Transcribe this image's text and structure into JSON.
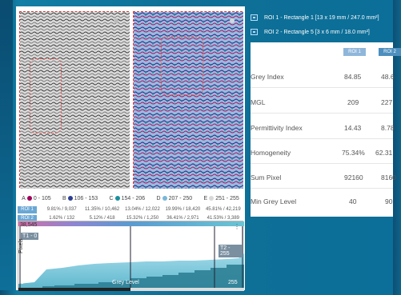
{
  "roi_legend": [
    {
      "label": "ROI 1 - Rectangle 1 [13 x 19 mm / 247.0 mm²]"
    },
    {
      "label": "ROI 2 - Rectangle 5 [3 x 6 mm / 18.0 mm²]"
    }
  ],
  "stats": {
    "head1": "ROI 1",
    "head2": "ROI 2",
    "rows": [
      {
        "label": "Grey Index",
        "v1": "84.85",
        "v2": "48.6"
      },
      {
        "label": "MGL",
        "v1": "209",
        "v2": "227"
      },
      {
        "label": "Permittivity Index",
        "v1": "14.43",
        "v2": "8.78"
      },
      {
        "label": "Homogeneity",
        "v1": "75.34%",
        "v2": "62.31"
      },
      {
        "label": "Sum Pixel",
        "v1": "92160",
        "v2": "8160"
      },
      {
        "label": "Min Grey Level",
        "v1": "40",
        "v2": "90"
      }
    ]
  },
  "grey_ranges": [
    {
      "letter": "A",
      "range": "0 - 105",
      "color": "#a0005a"
    },
    {
      "letter": "B",
      "range": "106 - 153",
      "color": "#2c3e91"
    },
    {
      "letter": "C",
      "range": "154 - 206",
      "color": "#1a8f9d"
    },
    {
      "letter": "D",
      "range": "207 - 250",
      "color": "#79b7d8"
    },
    {
      "letter": "E",
      "range": "251 - 255",
      "color": "#d8d8d8"
    }
  ],
  "roi_table": [
    {
      "tag": "ROI 1",
      "cells": [
        "9.81% / 9,037",
        "11.35% / 10,462",
        "13.04% / 12,022",
        "19.99% / 18,420",
        "45.81% / 42,219"
      ]
    },
    {
      "tag": "ROI 2",
      "cells": [
        "1.62% / 132",
        "5.12% / 418",
        "15.32% / 1,250",
        "36.41% / 2,971",
        "41.53% / 3,389"
      ]
    }
  ],
  "histogram": {
    "y_max": "38,545",
    "range_tag_left": "T1 - 0",
    "range_tag_right": "T2 - 255",
    "y_label": "Pixels",
    "x_label": "Grey Level",
    "x_min": "0",
    "x_max": "255",
    "menu": "⋮"
  },
  "colors": {
    "accent": "#6aa7d4",
    "roi_outline": "#d23c3c"
  }
}
